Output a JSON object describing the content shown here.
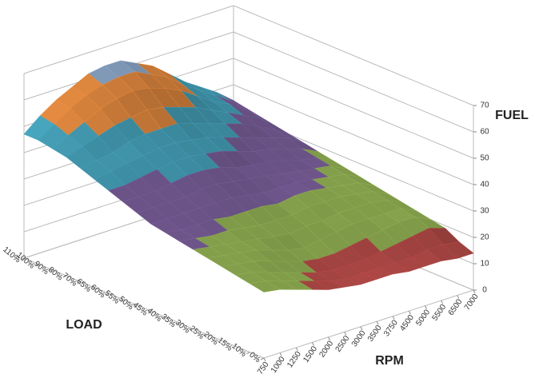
{
  "chart_data": {
    "type": "surface",
    "categories": [
      "0%",
      "10%",
      "15%",
      "20%",
      "25%",
      "30%",
      "35%",
      "40%",
      "45%",
      "50%",
      "55%",
      "60%",
      "65%",
      "70%",
      "80%",
      "90%",
      "100%",
      "110%"
    ],
    "series": [
      {
        "name": "750",
        "values": [
          25,
          26,
          27,
          28,
          29,
          30,
          31,
          32,
          33,
          35,
          37,
          39,
          41,
          43,
          45,
          46,
          47,
          47
        ]
      },
      {
        "name": "1000",
        "values": [
          24,
          25,
          26,
          27,
          28,
          29,
          30,
          31,
          33,
          35,
          37,
          39,
          42,
          44,
          47,
          49,
          51,
          52
        ]
      },
      {
        "name": "1250",
        "values": [
          22,
          23,
          24,
          26,
          27,
          28,
          29,
          31,
          33,
          35,
          37,
          40,
          43,
          45,
          49,
          52,
          55,
          56
        ]
      },
      {
        "name": "1500",
        "values": [
          20,
          21,
          22,
          24,
          26,
          27,
          29,
          31,
          33,
          35,
          38,
          41,
          44,
          47,
          51,
          55,
          58,
          59
        ]
      },
      {
        "name": "2000",
        "values": [
          18,
          19,
          20,
          22,
          24,
          26,
          28,
          30,
          33,
          36,
          39,
          42,
          45,
          48,
          52,
          57,
          60,
          62
        ]
      },
      {
        "name": "2500",
        "values": [
          17,
          17,
          18,
          20,
          22,
          25,
          27,
          30,
          33,
          36,
          39,
          42,
          45,
          48,
          53,
          58,
          61,
          63
        ]
      },
      {
        "name": "3000",
        "values": [
          16,
          16,
          17,
          19,
          21,
          24,
          27,
          30,
          32,
          35,
          38,
          41,
          44,
          48,
          52,
          57,
          61,
          63
        ]
      },
      {
        "name": "3500",
        "values": [
          16,
          16,
          17,
          19,
          22,
          25,
          27,
          29,
          31,
          34,
          36,
          40,
          43,
          46,
          50,
          55,
          58,
          60
        ]
      },
      {
        "name": "3750",
        "values": [
          16,
          16,
          17,
          20,
          23,
          25,
          28,
          30,
          31,
          33,
          35,
          38,
          41,
          44,
          48,
          52,
          55,
          57
        ]
      },
      {
        "name": "4500",
        "values": [
          15,
          16,
          18,
          21,
          24,
          26,
          28,
          30,
          31,
          32,
          34,
          36,
          39,
          42,
          45,
          48,
          50,
          52
        ]
      },
      {
        "name": "5000",
        "values": [
          15,
          16,
          19,
          22,
          24,
          26,
          28,
          29,
          30,
          31,
          33,
          35,
          37,
          40,
          42,
          44,
          46,
          47
        ]
      },
      {
        "name": "5500",
        "values": [
          15,
          17,
          20,
          23,
          24,
          26,
          27,
          28,
          29,
          30,
          31,
          33,
          35,
          37,
          39,
          41,
          42,
          43
        ]
      },
      {
        "name": "6500",
        "values": [
          14,
          17,
          21,
          23,
          24,
          25,
          26,
          27,
          28,
          29,
          30,
          31,
          33,
          34,
          36,
          37,
          38,
          39
        ]
      },
      {
        "name": "7000",
        "values": [
          14,
          16,
          19,
          20,
          21,
          22,
          23,
          24,
          25,
          26,
          27,
          28,
          29,
          30,
          31,
          32,
          33,
          34
        ]
      }
    ],
    "ylim": [
      0,
      70
    ],
    "yticks": [
      0,
      10,
      20,
      30,
      40,
      50,
      60,
      70
    ],
    "band_colors": [
      "#4f81bd",
      "#c0504d",
      "#9bbb59",
      "#8064a2",
      "#4bacc6",
      "#f79646",
      "#95b3d7"
    ],
    "grid": true,
    "x_label": "LOAD",
    "z_label": "RPM",
    "y_label": "FUEL"
  }
}
